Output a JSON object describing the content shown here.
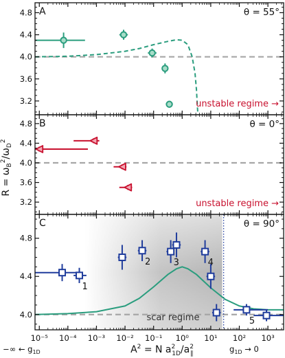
{
  "figure": {
    "ylabel": "R = ω_B²/ω_D²",
    "xlabel": "A² = N a²_1D/a²_∥",
    "left_note": "−∞ ← g_1D",
    "right_note": "g_1D → 0",
    "x_axis": {
      "scale": "log",
      "range_log10": [
        -5.15,
        3.55
      ],
      "ticks_log10": [
        -5,
        -4,
        -3,
        -2,
        -1,
        0,
        1,
        2,
        3
      ],
      "tick_labels": [
        "10⁻⁵",
        "10⁻⁴",
        "10⁻³",
        "10⁻²",
        "10⁻¹",
        "10⁰",
        "10¹",
        "10²",
        "10³"
      ]
    }
  },
  "colors": {
    "green": "#2a9d7e",
    "red": "#c8102e",
    "blue": "#1f3c9c",
    "reference": "#a6a6a6",
    "dotted": "#1f3c9c"
  },
  "chart_data": [
    {
      "panel": "A",
      "type": "scatter",
      "theta_label": "θ = 55°",
      "ylim": [
        2.95,
        4.98
      ],
      "yticks": [
        3.2,
        3.6,
        4.0,
        4.4,
        4.8
      ],
      "reference_line_y": 4.0,
      "annotation": "unstable regime →",
      "points": [
        {
          "x_log": -4.15,
          "y": 4.3,
          "xerr_lo": -5.15,
          "xerr_hi": -3.4,
          "yerr": 0.14
        },
        {
          "x_log": -2.05,
          "y": 4.4,
          "xerr_lo": -2.2,
          "xerr_hi": -1.9,
          "yerr": 0.09
        },
        {
          "x_log": -1.05,
          "y": 4.07,
          "xerr_lo": -1.2,
          "xerr_hi": -0.9,
          "yerr": 0.08
        },
        {
          "x_log": -0.6,
          "y": 3.79,
          "xerr_lo": -0.7,
          "xerr_hi": -0.5,
          "yerr": 0.09
        },
        {
          "x_log": -0.45,
          "y": 3.14,
          "xerr_lo": -0.55,
          "xerr_hi": -0.35,
          "yerr": 0.06
        }
      ],
      "curve": [
        [
          -5.15,
          4.0
        ],
        [
          -4,
          4.01
        ],
        [
          -3,
          4.04
        ],
        [
          -2,
          4.1
        ],
        [
          -1.5,
          4.15
        ],
        [
          -1,
          4.22
        ],
        [
          -0.5,
          4.28
        ],
        [
          -0.2,
          4.31
        ],
        [
          0,
          4.3
        ],
        [
          0.2,
          4.22
        ],
        [
          0.35,
          4.0
        ],
        [
          0.45,
          3.7
        ],
        [
          0.5,
          3.4
        ],
        [
          0.53,
          3.12
        ],
        [
          0.55,
          2.95
        ]
      ]
    },
    {
      "panel": "B",
      "type": "scatter",
      "theta_label": "θ = 0°",
      "ylim": [
        2.95,
        4.98
      ],
      "yticks": [
        3.2,
        3.6,
        4.0,
        4.4,
        4.8
      ],
      "reference_line_y": 4.0,
      "annotation": "unstable regime →",
      "points": [
        {
          "x_log": -5.0,
          "y": 4.28,
          "xerr_lo": -5.15,
          "xerr_hi": -3.3,
          "yerr": 0.05
        },
        {
          "x_log": -3.1,
          "y": 4.45,
          "xerr_lo": -3.8,
          "xerr_hi": -2.9,
          "yerr": 0.05
        },
        {
          "x_log": -2.1,
          "y": 3.92,
          "xerr_lo": -2.4,
          "xerr_hi": -1.95,
          "yerr": 0.05
        },
        {
          "x_log": -1.9,
          "y": 3.5,
          "xerr_lo": -2.2,
          "xerr_hi": -1.75,
          "yerr": 0.05
        }
      ]
    },
    {
      "panel": "C",
      "type": "scatter",
      "theta_label": "θ = 90°",
      "ylim": [
        3.84,
        5.05
      ],
      "yticks": [
        4.0,
        4.4,
        4.8
      ],
      "reference_line_y": 4.0,
      "shaded_region_log": [
        -3.4,
        1.4
      ],
      "shaded_label": "scar regime",
      "dotted_vline_log": 1.45,
      "points": [
        {
          "x_log": -4.2,
          "y": 4.44,
          "xerr_lo": -5.15,
          "xerr_hi": -3.6,
          "yerr": 0.09,
          "label": ""
        },
        {
          "x_log": -3.6,
          "y": 4.41,
          "xerr_lo": -3.8,
          "xerr_hi": -3.35,
          "yerr": 0.08,
          "label": "1"
        },
        {
          "x_log": -2.1,
          "y": 4.6,
          "xerr_lo": -2.25,
          "xerr_hi": -1.95,
          "yerr": 0.13,
          "label": ""
        },
        {
          "x_log": -1.4,
          "y": 4.67,
          "xerr_lo": -1.55,
          "xerr_hi": -1.25,
          "yerr": 0.11,
          "label": "2"
        },
        {
          "x_log": -0.4,
          "y": 4.66,
          "xerr_lo": -0.55,
          "xerr_hi": -0.3,
          "yerr": 0.12,
          "label": "3"
        },
        {
          "x_log": -0.2,
          "y": 4.73,
          "xerr_lo": -0.35,
          "xerr_hi": -0.05,
          "yerr": 0.13,
          "label": ""
        },
        {
          "x_log": 0.8,
          "y": 4.66,
          "xerr_lo": 0.65,
          "xerr_hi": 0.95,
          "yerr": 0.12,
          "label": "4"
        },
        {
          "x_log": 1.0,
          "y": 4.4,
          "xerr_lo": 0.85,
          "xerr_hi": 1.15,
          "yerr": 0.13,
          "label": ""
        },
        {
          "x_log": 1.2,
          "y": 4.02,
          "xerr_lo": 1.05,
          "xerr_hi": 1.35,
          "yerr": 0.09,
          "label": ""
        },
        {
          "x_log": 2.25,
          "y": 4.05,
          "xerr_lo": 1.8,
          "xerr_hi": 3.0,
          "yerr": 0.06,
          "label": "5"
        },
        {
          "x_log": 2.95,
          "y": 3.99,
          "xerr_lo": 2.5,
          "xerr_hi": 3.55,
          "yerr": 0.06,
          "label": ""
        }
      ],
      "curve": [
        [
          -5.15,
          4.0
        ],
        [
          -4,
          4.01
        ],
        [
          -3,
          4.03
        ],
        [
          -2,
          4.09
        ],
        [
          -1.5,
          4.17
        ],
        [
          -1,
          4.29
        ],
        [
          -0.5,
          4.42
        ],
        [
          -0.2,
          4.48
        ],
        [
          0,
          4.5
        ],
        [
          0.2,
          4.48
        ],
        [
          0.5,
          4.42
        ],
        [
          1,
          4.28
        ],
        [
          1.5,
          4.16
        ],
        [
          2,
          4.09
        ],
        [
          2.5,
          4.06
        ],
        [
          3,
          4.05
        ],
        [
          3.55,
          4.05
        ]
      ]
    }
  ]
}
